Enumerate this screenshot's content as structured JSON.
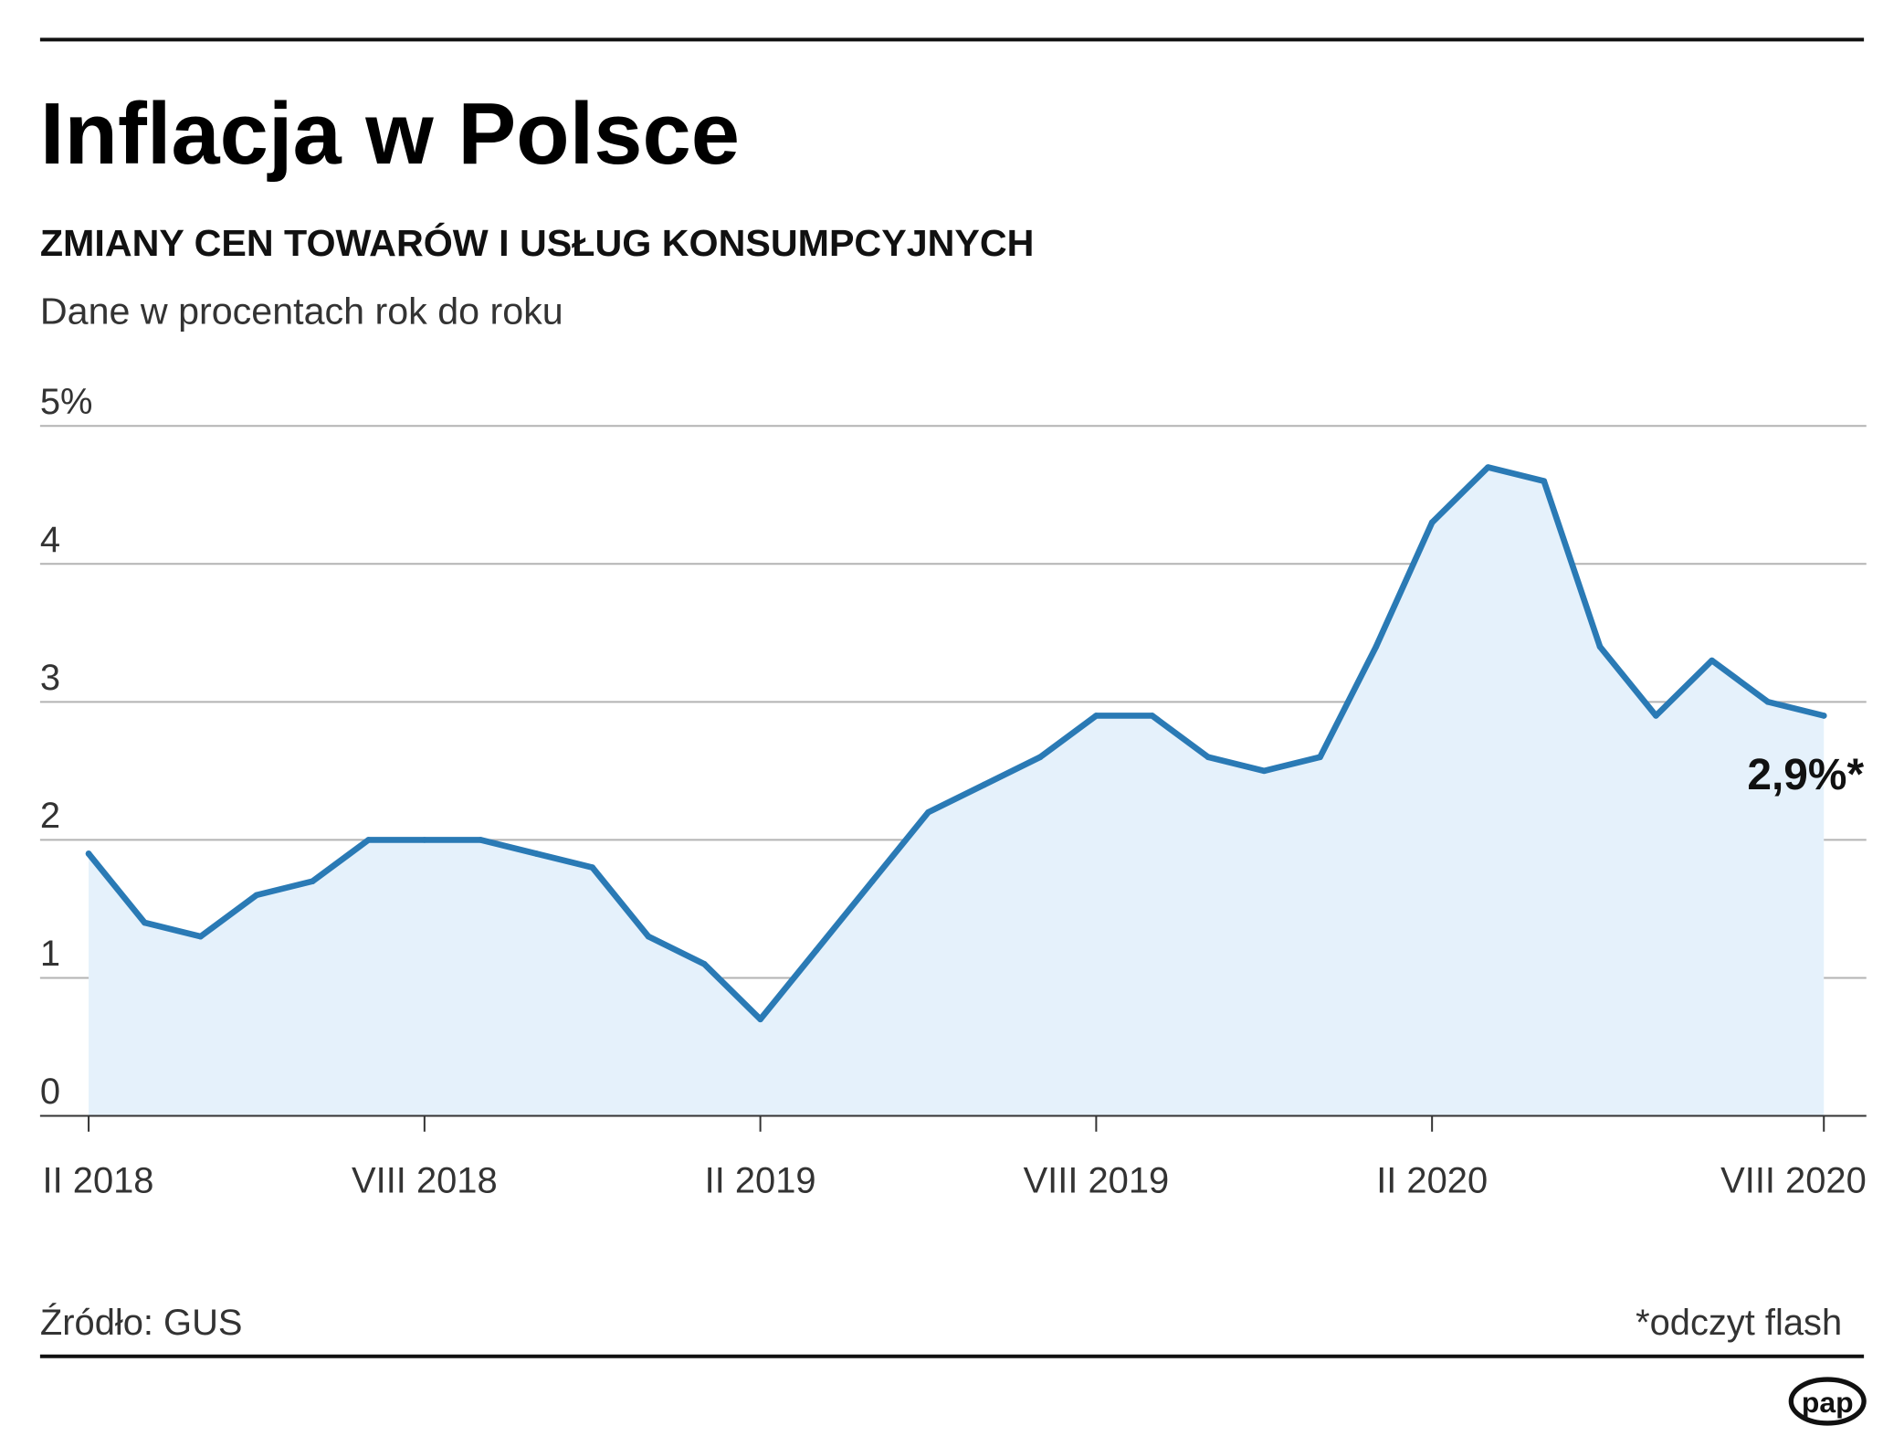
{
  "title": "Inflacja w Polsce",
  "subtitle": "ZMIANY CEN TOWARÓW I USŁUG KONSUMPCYJNYCH",
  "description": "Dane w procentach rok do roku",
  "source": "Źródło: GUS",
  "footnote": "*odczyt flash",
  "logo": "pap",
  "colors": {
    "line": "#2a7ab5",
    "area": "#e5f1fb",
    "grid": "#b3b3b3",
    "rule": "#111111"
  },
  "chart_data": {
    "type": "area",
    "title": "Inflacja w Polsce",
    "ylabel": "",
    "xlabel": "",
    "ylim": [
      0,
      5
    ],
    "grid": true,
    "y_ticks": [
      {
        "value": 0,
        "label": "0"
      },
      {
        "value": 1,
        "label": "1"
      },
      {
        "value": 2,
        "label": "2"
      },
      {
        "value": 3,
        "label": "3"
      },
      {
        "value": 4,
        "label": "4"
      },
      {
        "value": 5,
        "label": "5%"
      }
    ],
    "x_ticks": [
      {
        "x": "2018-01",
        "label": "II 2018"
      },
      {
        "x": "2018-07",
        "label": "VIII 2018"
      },
      {
        "x": "2019-01",
        "label": "II 2019"
      },
      {
        "x": "2019-07",
        "label": "VIII 2019"
      },
      {
        "x": "2020-01",
        "label": "II 2020"
      },
      {
        "x": "2020-08",
        "label": "VIII 2020"
      }
    ],
    "x": [
      "2018-01",
      "2018-02",
      "2018-03",
      "2018-04",
      "2018-05",
      "2018-06",
      "2018-07",
      "2018-08",
      "2018-09",
      "2018-10",
      "2018-11",
      "2018-12",
      "2019-01",
      "2019-02",
      "2019-03",
      "2019-04",
      "2019-05",
      "2019-06",
      "2019-07",
      "2019-08",
      "2019-09",
      "2019-10",
      "2019-11",
      "2019-12",
      "2020-01",
      "2020-02",
      "2020-03",
      "2020-04",
      "2020-05",
      "2020-06",
      "2020-07",
      "2020-08"
    ],
    "values": [
      1.9,
      1.4,
      1.3,
      1.6,
      1.7,
      2.0,
      2.0,
      2.0,
      1.9,
      1.8,
      1.3,
      1.1,
      0.7,
      1.2,
      1.7,
      2.2,
      2.4,
      2.6,
      2.9,
      2.9,
      2.6,
      2.5,
      2.6,
      3.4,
      4.3,
      4.7,
      4.6,
      3.4,
      2.9,
      3.3,
      3.0,
      2.9
    ],
    "annotation": "2,9%*"
  }
}
